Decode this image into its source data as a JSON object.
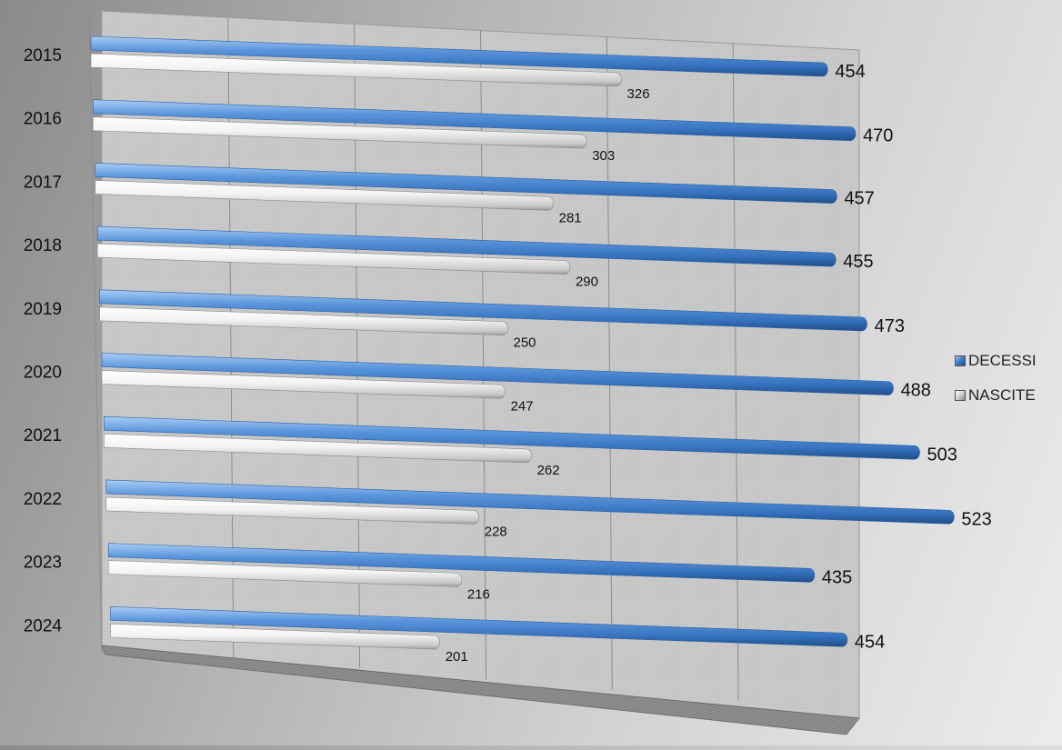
{
  "chart_data": {
    "type": "bar",
    "orientation": "horizontal",
    "categories": [
      "2015",
      "2016",
      "2017",
      "2018",
      "2019",
      "2020",
      "2021",
      "2022",
      "2023",
      "2024"
    ],
    "series": [
      {
        "name": "DECESSI",
        "color": "#3f7fcc",
        "values": [
          454,
          470,
          457,
          455,
          473,
          488,
          503,
          523,
          435,
          454
        ]
      },
      {
        "name": "NASCITE",
        "color": "#e9e9e9",
        "values": [
          326,
          303,
          281,
          290,
          250,
          247,
          262,
          228,
          216,
          201
        ]
      }
    ],
    "xlim": [
      0,
      600
    ],
    "grid": true,
    "legend_position": "right"
  },
  "colors": {
    "decessi": "#3f7fcc",
    "nascite": "#e9e9e9"
  }
}
